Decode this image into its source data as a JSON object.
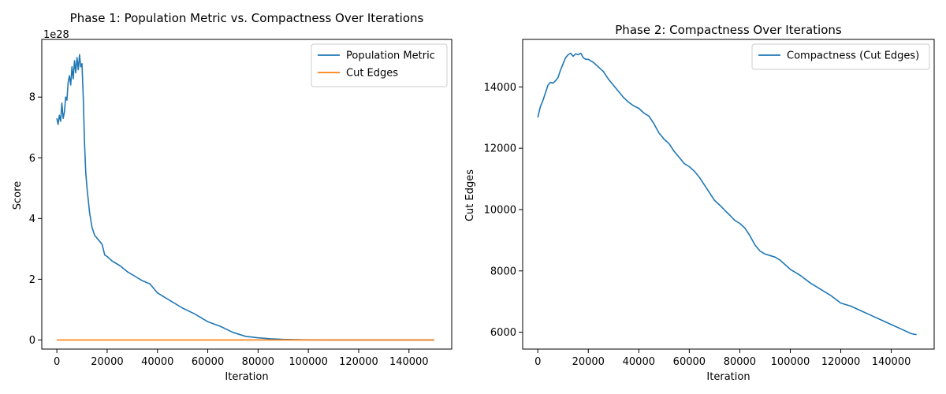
{
  "chart_data": [
    {
      "type": "line",
      "title": "Phase 1: Population Metric vs. Compactness Over Iterations",
      "xlabel": "Iteration",
      "ylabel": "Score",
      "offset_text": "1e28",
      "xlim": [
        -6000,
        157000
      ],
      "ylim": [
        -0.3,
        9.9
      ],
      "xticks": [
        0,
        20000,
        40000,
        60000,
        80000,
        100000,
        120000,
        140000
      ],
      "xtick_labels": [
        "0",
        "20000",
        "40000",
        "60000",
        "80000",
        "100000",
        "120000",
        "140000"
      ],
      "yticks": [
        0,
        2,
        4,
        6,
        8
      ],
      "ytick_labels": [
        "0",
        "2",
        "4",
        "6",
        "8"
      ],
      "legend_position": "top-right",
      "series": [
        {
          "name": "Population Metric",
          "color": "#1f77b4",
          "x": [
            0,
            500,
            1000,
            1500,
            2000,
            2500,
            3000,
            3500,
            4000,
            4500,
            5000,
            5500,
            6000,
            6500,
            7000,
            7500,
            8000,
            8500,
            9000,
            9500,
            10000,
            10500,
            11000,
            11500,
            12000,
            12500,
            13000,
            14000,
            15000,
            16000,
            17000,
            18000,
            19000,
            20000,
            22000,
            25000,
            28000,
            31000,
            34000,
            37000,
            40000,
            45000,
            50000,
            55000,
            60000,
            65000,
            70000,
            75000,
            80000,
            85000,
            90000,
            95000,
            100000,
            110000,
            120000,
            130000,
            140000,
            150000
          ],
          "y": [
            7.3,
            7.1,
            7.4,
            7.2,
            7.8,
            7.3,
            7.5,
            8.0,
            7.9,
            8.5,
            8.7,
            8.4,
            9.0,
            8.6,
            9.2,
            8.8,
            9.3,
            8.9,
            9.4,
            9.0,
            9.1,
            8.0,
            6.5,
            5.5,
            5.0,
            4.6,
            4.2,
            3.7,
            3.45,
            3.35,
            3.25,
            3.15,
            2.8,
            2.75,
            2.6,
            2.45,
            2.25,
            2.1,
            1.95,
            1.85,
            1.55,
            1.3,
            1.05,
            0.85,
            0.6,
            0.45,
            0.25,
            0.12,
            0.07,
            0.04,
            0.02,
            0.01,
            0.004,
            0.002,
            0.001,
            0.0,
            0.0,
            0.0
          ]
        },
        {
          "name": "Cut Edges",
          "color": "#ff7f0e",
          "x": [
            0,
            150000
          ],
          "y": [
            0.0,
            0.0
          ]
        }
      ]
    },
    {
      "type": "line",
      "title": "Phase 2: Compactness Over Iterations",
      "xlabel": "Iteration",
      "ylabel": "Cut Edges",
      "xlim": [
        -6000,
        157000
      ],
      "ylim": [
        5450,
        15550
      ],
      "xticks": [
        0,
        20000,
        40000,
        60000,
        80000,
        100000,
        120000,
        140000
      ],
      "xtick_labels": [
        "0",
        "20000",
        "40000",
        "60000",
        "80000",
        "100000",
        "120000",
        "140000"
      ],
      "yticks": [
        6000,
        8000,
        10000,
        12000,
        14000
      ],
      "ytick_labels": [
        "6000",
        "8000",
        "10000",
        "12000",
        "14000"
      ],
      "legend_position": "top-right",
      "series": [
        {
          "name": "Compactness (Cut Edges)",
          "color": "#1f77b4",
          "x": [
            0,
            1000,
            2000,
            3000,
            4000,
            5000,
            6000,
            7000,
            8000,
            9000,
            10000,
            11000,
            12000,
            13000,
            14000,
            15000,
            16000,
            17000,
            18000,
            19000,
            20000,
            22000,
            24000,
            26000,
            28000,
            30000,
            32000,
            34000,
            36000,
            38000,
            40000,
            42000,
            44000,
            46000,
            48000,
            50000,
            52000,
            54000,
            56000,
            58000,
            60000,
            62000,
            64000,
            66000,
            68000,
            70000,
            72000,
            74000,
            76000,
            78000,
            80000,
            82000,
            84000,
            86000,
            88000,
            90000,
            92000,
            94000,
            96000,
            98000,
            100000,
            104000,
            108000,
            112000,
            116000,
            120000,
            124000,
            128000,
            132000,
            136000,
            140000,
            144000,
            148000,
            150000
          ],
          "y": [
            13000,
            13350,
            13550,
            13800,
            14050,
            14150,
            14120,
            14200,
            14300,
            14550,
            14750,
            14950,
            15050,
            15100,
            15000,
            15080,
            15050,
            15100,
            14950,
            14900,
            14900,
            14800,
            14650,
            14500,
            14250,
            14050,
            13850,
            13650,
            13500,
            13380,
            13300,
            13150,
            13050,
            12800,
            12500,
            12300,
            12150,
            11900,
            11700,
            11500,
            11400,
            11250,
            11050,
            10800,
            10550,
            10300,
            10150,
            9980,
            9820,
            9650,
            9550,
            9400,
            9150,
            8850,
            8650,
            8550,
            8500,
            8450,
            8350,
            8200,
            8050,
            7850,
            7600,
            7400,
            7200,
            6950,
            6850,
            6700,
            6550,
            6400,
            6250,
            6100,
            5950,
            5920
          ]
        }
      ]
    }
  ]
}
